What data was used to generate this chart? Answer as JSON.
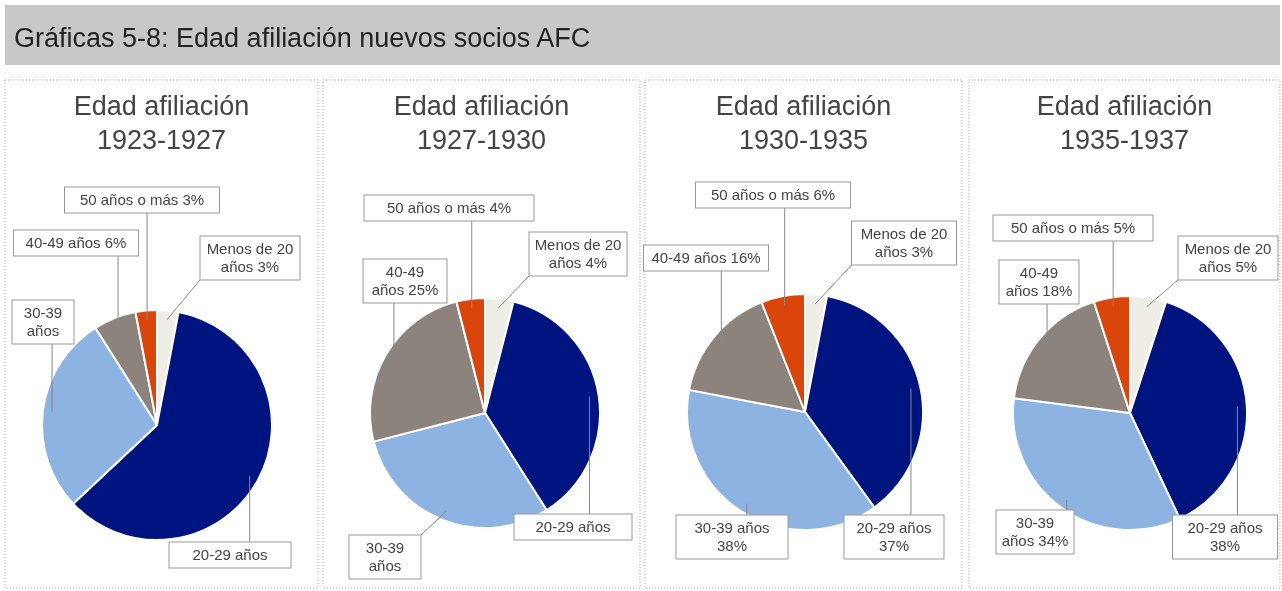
{
  "chart_data": [
    {
      "type": "other",
      "title": "Gráficas 5-8: Edad afiliación nuevos socios AFC"
    },
    {
      "type": "pie",
      "title": "Edad afiliación 1923-1927",
      "categories": [
        "Menos de 20 años",
        "20-29 años",
        "30-39 años",
        "40-49 años",
        "50 años o más"
      ],
      "values": [
        3,
        60,
        28,
        6,
        3
      ],
      "value_labels": [
        "3%",
        null,
        null,
        "6%",
        "3%"
      ],
      "colors": [
        "#efeee6",
        "#00147f",
        "#8db3e2",
        "#8c837c",
        "#d9450b"
      ]
    },
    {
      "type": "pie",
      "title": "Edad afiliación 1927-1930",
      "categories": [
        "Menos de 20 años",
        "20-29 años",
        "30-39 años",
        "40-49 años",
        "50 años o más"
      ],
      "values": [
        4,
        37,
        30,
        25,
        4
      ],
      "value_labels": [
        "4%",
        null,
        null,
        "25%",
        "4%"
      ],
      "colors": [
        "#efeee6",
        "#00147f",
        "#8db3e2",
        "#8c837c",
        "#d9450b"
      ]
    },
    {
      "type": "pie",
      "title": "Edad afiliación 1930-1935",
      "categories": [
        "Menos de 20 años",
        "20-29 años",
        "30-39 años",
        "40-49 años",
        "50 años o más"
      ],
      "values": [
        3,
        37,
        38,
        16,
        6
      ],
      "value_labels": [
        "3%",
        "37%",
        "38%",
        "16%",
        "6%"
      ],
      "colors": [
        "#efeee6",
        "#00147f",
        "#8db3e2",
        "#8c837c",
        "#d9450b"
      ]
    },
    {
      "type": "pie",
      "title": "Edad afiliación 1935-1937",
      "categories": [
        "Menos de 20 años",
        "20-29 años",
        "30-39 años",
        "40-49 años",
        "50 años o más"
      ],
      "values": [
        5,
        38,
        34,
        18,
        5
      ],
      "value_labels": [
        "5%",
        "38%",
        "34%",
        "18%",
        "5%"
      ],
      "colors": [
        "#efeee6",
        "#00147f",
        "#8db3e2",
        "#8c837c",
        "#d9450b"
      ]
    }
  ]
}
